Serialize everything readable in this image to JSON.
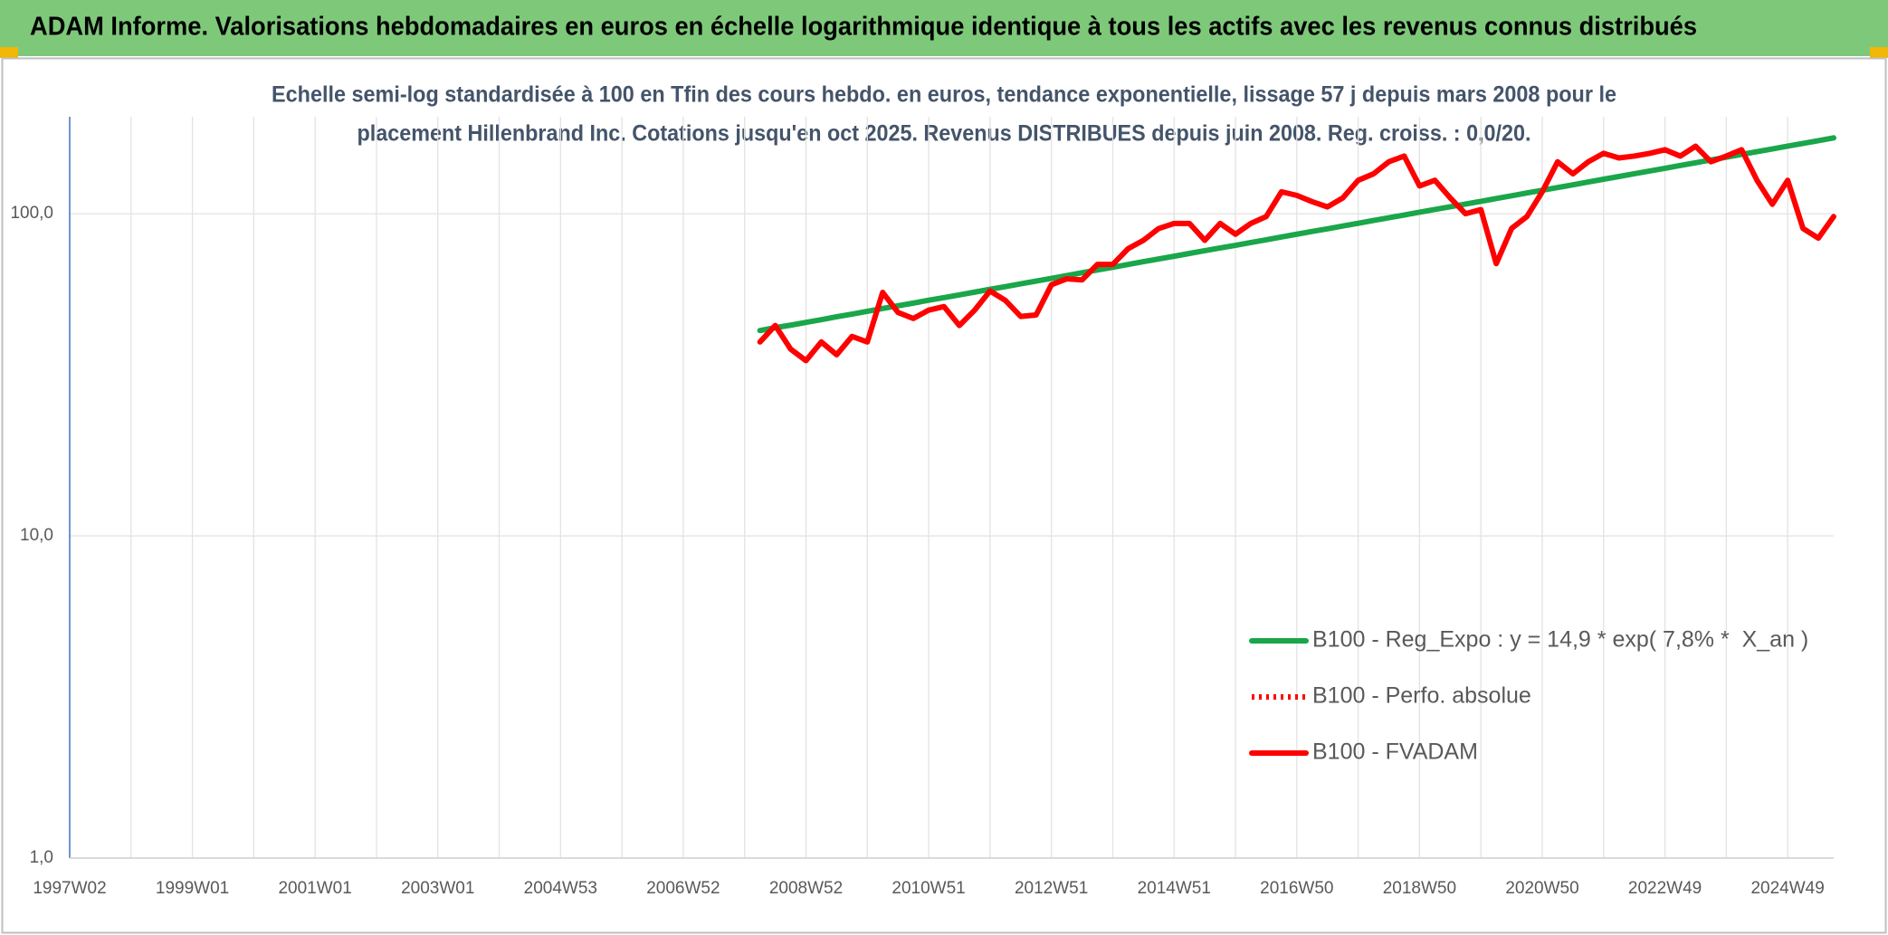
{
  "chart_data": {
    "type": "line",
    "title": "ADAM Informe. Valorisations hebdomadaires en euros en échelle logarithmique identique à tous les actifs avec les revenus connus distribués",
    "subtitle": [
      "Echelle semi-log standardisée à 100 en Tfin des cours hebdo. en euros, tendance exponentielle, lissage 57 j depuis mars 2008 pour le",
      "placement Hillenbrand Inc. Cotations jusqu'en oct 2025. Revenus DISTRIBUES depuis juin 2008. Reg. croiss. : 0,0/20."
    ],
    "categories": [
      "1997W02",
      null,
      null,
      null,
      null,
      null,
      null,
      null,
      "1999W01",
      null,
      null,
      null,
      null,
      null,
      null,
      null,
      "2001W01",
      null,
      null,
      null,
      null,
      null,
      null,
      null,
      "2003W01",
      null,
      null,
      null,
      null,
      null,
      null,
      null,
      "2004W53",
      null,
      null,
      null,
      null,
      null,
      null,
      null,
      "2006W52",
      null,
      null,
      null,
      null,
      null,
      null,
      null,
      "2008W52",
      null,
      null,
      null,
      null,
      null,
      null,
      null,
      "2010W51",
      null,
      null,
      null,
      null,
      null,
      null,
      null,
      "2012W51",
      null,
      null,
      null,
      null,
      null,
      null,
      null,
      "2014W51",
      null,
      null,
      null,
      null,
      null,
      null,
      null,
      "2016W50",
      null,
      null,
      null,
      null,
      null,
      null,
      null,
      "2018W50",
      null,
      null,
      null,
      null,
      null,
      null,
      null,
      "2020W50",
      null,
      null,
      null,
      null,
      null,
      null,
      null,
      "2022W49",
      null,
      null,
      null,
      null,
      null,
      null,
      null,
      "2024W49",
      null,
      null,
      null
    ],
    "yscale": "log",
    "ylim": [
      1,
      200
    ],
    "yticks": [
      {
        "value": 1,
        "label": "1,0"
      },
      {
        "value": 10,
        "label": "10,0"
      },
      {
        "value": 100,
        "label": "100,0"
      }
    ],
    "grid": true,
    "legend": "right",
    "series": [
      {
        "name": "B100 - Reg_Expo : y = 14,9 * exp( 7,8% *  X_an )",
        "color": "#1aa64a",
        "linestyle": "solid",
        "values": [
          null,
          null,
          null,
          null,
          null,
          null,
          null,
          null,
          null,
          null,
          null,
          null,
          null,
          null,
          null,
          null,
          null,
          null,
          null,
          null,
          null,
          null,
          null,
          null,
          null,
          null,
          null,
          null,
          null,
          null,
          null,
          null,
          null,
          null,
          null,
          null,
          null,
          null,
          null,
          null,
          null,
          null,
          null,
          null,
          null,
          43.4,
          44.3,
          45.1,
          46.0,
          46.9,
          47.9,
          48.8,
          49.8,
          50.8,
          51.8,
          52.8,
          53.9,
          54.9,
          56.0,
          57.1,
          58.3,
          59.4,
          60.6,
          61.8,
          63.0,
          64.3,
          65.6,
          66.9,
          68.2,
          69.6,
          71.0,
          72.4,
          73.8,
          75.3,
          76.8,
          78.3,
          79.8,
          81.4,
          83.0,
          84.7,
          86.4,
          88.1,
          89.8,
          91.6,
          93.4,
          95.3,
          97.2,
          99.1,
          101.1,
          103.1,
          105.1,
          107.2,
          109.3,
          111.5,
          113.7,
          116.0,
          118.3,
          120.6,
          123.0,
          125.5,
          128.0,
          130.5,
          133.1,
          135.7,
          138.4,
          141.2,
          144.0,
          146.9,
          149.8,
          152.8,
          155.8,
          158.9,
          162.1,
          165.3,
          168.6,
          172.0
        ]
      },
      {
        "name": "B100 - Perfo. absolue",
        "color": "#ff0000",
        "linestyle": "dotted",
        "values": [
          null,
          null,
          null,
          null,
          null,
          null,
          null,
          null,
          null,
          null,
          null,
          null,
          null,
          null,
          null,
          null,
          null,
          null,
          null,
          null,
          null,
          null,
          null,
          null,
          null,
          null,
          null,
          null,
          null,
          null,
          null,
          null,
          null,
          null,
          null,
          null,
          null,
          null,
          null,
          null,
          null,
          null,
          null,
          null,
          null,
          null,
          null,
          null,
          null,
          null,
          null,
          null,
          null,
          null,
          null,
          null,
          null,
          null,
          null,
          null,
          null,
          null,
          null,
          null,
          null,
          null,
          null,
          null,
          null,
          null,
          null,
          null,
          null,
          null,
          null,
          null,
          null,
          null,
          null,
          null,
          null,
          null,
          null,
          null,
          null,
          null,
          null,
          null,
          null,
          null,
          null,
          null,
          null,
          null,
          null,
          null,
          null,
          null,
          null,
          null,
          null,
          null,
          null,
          null,
          null,
          null,
          null,
          null,
          null,
          null,
          null,
          null,
          null,
          null,
          null,
          null
        ]
      },
      {
        "name": "B100 - FVADAM",
        "color": "#ff0000",
        "linestyle": "solid",
        "values": [
          null,
          null,
          null,
          null,
          null,
          null,
          null,
          null,
          null,
          null,
          null,
          null,
          null,
          null,
          null,
          null,
          null,
          null,
          null,
          null,
          null,
          null,
          null,
          null,
          null,
          null,
          null,
          null,
          null,
          null,
          null,
          null,
          null,
          null,
          null,
          null,
          null,
          null,
          null,
          null,
          null,
          null,
          null,
          null,
          null,
          40,
          45,
          38,
          35,
          40,
          36.5,
          41.6,
          40,
          57,
          49.4,
          47.3,
          50.2,
          51.5,
          45,
          50.2,
          57.6,
          53.8,
          48,
          48.5,
          60.2,
          62.8,
          62.3,
          69.6,
          69.6,
          77.9,
          82.7,
          90,
          93.3,
          93.3,
          82.7,
          93.3,
          86.4,
          93.3,
          98,
          117,
          114,
          109,
          105,
          112,
          127,
          133,
          145,
          151,
          122,
          127,
          112,
          100,
          103,
          70,
          90,
          98,
          117,
          145,
          133,
          145,
          154,
          149,
          151,
          154,
          158,
          151,
          162,
          145,
          151,
          158,
          127,
          107,
          127,
          90,
          84,
          98
        ]
      }
    ]
  }
}
